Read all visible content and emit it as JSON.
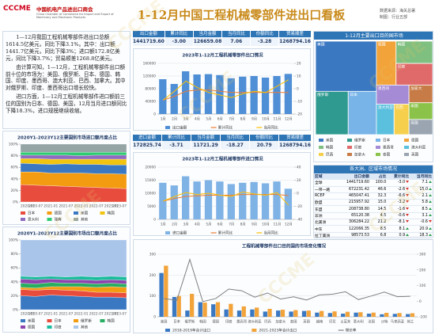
{
  "watermark": "CCCME",
  "header": {
    "logo": "CCCME",
    "org_name": "中国机电产品进出口商会",
    "org_name_en": "China Chamber of Commerce for Import and Export of Machinery and Electronic Products",
    "title": "1-12月中国工程机械零部件进出口看板",
    "source": "数据来源：海关总署",
    "author": "制图：行业五部"
  },
  "summary": {
    "paragraphs": [
      "1—12月我国工程机械零部件进出口总额1614.5亿美元，同比下降3.1%。其中：出口额1441.7亿美元，同比下降3%；进口额172.8亿美元，同比下降3.7%；贸易顺差1268.8亿美元。",
      "由计算可知，1—12月，工程机械零部件出口额前十位的市场为：美国、俄罗斯、日本、德国、韩国、印度、墨西哥、澳大利亚、巴西、加拿大。其中对俄罗斯、印度、墨西哥出口增长较快。",
      "进口方面，1—12月工程机械零部件进口额前三位的国别为日本、德国、美国，12月当月进口额同比下降18.3%，进口规模继续收缩。"
    ]
  },
  "export_kpis": [
    {
      "label": "出口金额",
      "value": "1441719.60"
    },
    {
      "label": "累计同比",
      "value": "-3.00"
    },
    {
      "label": "当月金额",
      "value": "126659.08"
    },
    {
      "label": "当月同比",
      "value": "7.06"
    },
    {
      "label": "份额同比",
      "value": "-3.28"
    },
    {
      "label": "贸易顺差",
      "value": "1268794.16"
    }
  ],
  "import_kpis": [
    {
      "label": "进口金额",
      "value": "172825.74"
    },
    {
      "label": "累计同比",
      "value": "-3.71"
    },
    {
      "label": "当月金额",
      "value": "11721.29"
    },
    {
      "label": "当月同比",
      "value": "-18.27"
    },
    {
      "label": "份额同比",
      "value": "20.79"
    },
    {
      "label": "贸易顺差",
      "value": "1268794.16"
    }
  ],
  "region_table": {
    "title": "各大洲、区域市场情况",
    "columns": [
      "区域",
      "出口金额",
      "占比",
      "累计同比",
      "当月同比"
    ],
    "rows": [
      [
        "全球",
        "1441719.60",
        "100.0",
        "-3.0",
        "7.1"
      ],
      [
        "一带一路",
        "672231.42",
        "46.6",
        "-2.6",
        "15.0"
      ],
      [
        "RCEP",
        "465047.41",
        "32.3",
        "-6.6",
        "2.1"
      ],
      [
        "欧盟",
        "215957.92",
        "15.0",
        "-3.2",
        "5.8"
      ],
      [
        "东盟",
        "208738.80",
        "14.5",
        "-1.6",
        "8.5"
      ],
      [
        "非洲",
        "65120.38",
        "4.5",
        "-0.6",
        "3.1"
      ],
      [
        "北美洲",
        "306284.22",
        "21.2",
        "-8.1",
        "-0.6"
      ],
      [
        "中东",
        "122066.35",
        "8.5",
        "8.1",
        "20.9"
      ],
      [
        "拉丁美洲",
        "98573.53",
        "6.8",
        "0.9",
        "18.3"
      ],
      [
        "大洋洲",
        "76105.01",
        "5.3",
        "0.9",
        "-2.0"
      ]
    ]
  },
  "chart_data": [
    {
      "type": "bar",
      "title": "2023年1-12月工程机械零部件出口情况",
      "categories": [
        "1月",
        "2月",
        "3月",
        "4月",
        "5月",
        "6月",
        "7月",
        "8月",
        "9月",
        "10月",
        "11月",
        "12月"
      ],
      "series": [
        {
          "name": "出口金额",
          "color": "#4f8fd6",
          "values": [
            110000,
            95000,
            135000,
            125000,
            126000,
            123000,
            113000,
            118000,
            120000,
            115000,
            120000,
            126659.08
          ]
        },
        {
          "name": "累计同比",
          "type": "line",
          "axis": "y2",
          "color": "#ed7d31",
          "values": [
            -9,
            -6,
            -2,
            -1,
            -1,
            -2,
            -3,
            -3,
            -3,
            -3,
            -3,
            -3
          ]
        },
        {
          "name": "当月同比",
          "type": "line",
          "axis": "y2",
          "color": "#ffc000",
          "values": [
            -9,
            -2,
            6,
            1,
            -3,
            -5,
            -7,
            -4,
            -2,
            -3,
            2,
            7.06
          ]
        }
      ],
      "ylim": [
        0,
        160000
      ],
      "yticks": [
        0,
        40000,
        80000,
        120000,
        160000
      ],
      "y2lim": [
        -20,
        20
      ],
      "y2ticks": [
        -20,
        -10,
        0,
        10,
        20
      ],
      "grid": true
    },
    {
      "type": "bar",
      "title": "2023年1-12月工程机械零部件进口情况",
      "categories": [
        "1月",
        "2月",
        "3月",
        "4月",
        "5月",
        "6月",
        "7月",
        "8月",
        "9月",
        "10月",
        "11月",
        "12月"
      ],
      "series": [
        {
          "name": "进口金额",
          "color": "#7fb2e5",
          "values": [
            14000,
            13000,
            16500,
            14500,
            15000,
            14500,
            13500,
            14000,
            14300,
            13800,
            14500,
            11721.29
          ]
        },
        {
          "name": "累计同比",
          "type": "line",
          "axis": "y2",
          "color": "#ed7d31",
          "values": [
            -12,
            -8,
            -5,
            -4,
            -3,
            -3,
            -3,
            -2,
            -2,
            -2,
            -2,
            -3.71
          ]
        },
        {
          "name": "当月同比",
          "type": "line",
          "axis": "y2",
          "color": "#ffc000",
          "values": [
            -12,
            -5,
            1,
            -2,
            0,
            -3,
            -5,
            2,
            -1,
            -3,
            1,
            -18.27
          ]
        }
      ],
      "ylim": [
        0,
        20000
      ],
      "yticks": [
        0,
        5000,
        10000,
        15000,
        20000
      ],
      "y2lim": [
        -40,
        40
      ],
      "y2ticks": [
        -40,
        -20,
        0,
        20,
        40
      ],
      "grid": true
    },
    {
      "type": "area",
      "stacked": true,
      "title": "2020Y1-2023Y12主要国别市场进口额月度占比",
      "categories": [
        "2020-01",
        "2020-07",
        "2021-01",
        "2021-07",
        "2022-01",
        "2022-07",
        "2023-01",
        "2023-07"
      ],
      "series": [
        {
          "name": "日本",
          "color": "#e84c3d",
          "values": [
            30,
            29,
            28,
            27,
            26,
            25,
            24,
            23
          ]
        },
        {
          "name": "德国",
          "color": "#f39c12",
          "values": [
            22,
            23,
            22,
            23,
            24,
            24,
            25,
            25
          ]
        },
        {
          "name": "美国",
          "color": "#3a78c2",
          "values": [
            15,
            14,
            15,
            16,
            15,
            16,
            15,
            16
          ]
        },
        {
          "name": "韩国",
          "color": "#f1c40f",
          "values": [
            8,
            9,
            9,
            8,
            9,
            9,
            10,
            10
          ]
        },
        {
          "name": "意大利",
          "color": "#8e6bbf",
          "values": [
            6,
            6,
            7,
            7,
            6,
            7,
            7,
            7
          ]
        },
        {
          "name": "瑞典",
          "color": "#2ecc71",
          "values": [
            5,
            5,
            5,
            5,
            6,
            5,
            5,
            5
          ]
        },
        {
          "name": "其他",
          "color": "#95a5a6",
          "values": [
            14,
            14,
            14,
            14,
            14,
            14,
            14,
            14
          ]
        }
      ],
      "ylim": [
        0,
        100
      ],
      "yticks": [
        {
          "value": 0,
          "label": "0%"
        },
        {
          "value": 20,
          "label": "20%"
        },
        {
          "value": 40,
          "label": "40%"
        },
        {
          "value": 60,
          "label": "60%"
        },
        {
          "value": 80,
          "label": "80%"
        },
        {
          "value": 100,
          "label": "100%"
        }
      ]
    },
    {
      "type": "area",
      "stacked": true,
      "title": "2020Y1-2023Y12主要国别市场出口额月度占比",
      "categories": [
        "2020-01",
        "2020-07",
        "2021-01",
        "2021-07",
        "2022-01",
        "2022-07",
        "2023-01",
        "2023-07"
      ],
      "series": [
        {
          "name": "美国",
          "color": "#3a78c2",
          "values": [
            20,
            19,
            21,
            20,
            19,
            18,
            18,
            17
          ]
        },
        {
          "name": "日本",
          "color": "#e84c3d",
          "values": [
            9,
            9,
            8,
            8,
            8,
            7,
            7,
            7
          ]
        },
        {
          "name": "俄罗斯",
          "color": "#f39c12",
          "values": [
            3,
            3,
            4,
            5,
            6,
            7,
            8,
            8
          ]
        },
        {
          "name": "韩国",
          "color": "#27ae60",
          "values": [
            6,
            6,
            6,
            5,
            5,
            5,
            5,
            5
          ]
        },
        {
          "name": "德国",
          "color": "#8e44ad",
          "values": [
            6,
            6,
            5,
            5,
            5,
            5,
            5,
            5
          ]
        },
        {
          "name": "印度",
          "color": "#1abc9c",
          "values": [
            4,
            4,
            4,
            4,
            5,
            5,
            5,
            5
          ]
        },
        {
          "name": "其他",
          "color": "#a9c6ea",
          "values": [
            52,
            53,
            52,
            53,
            52,
            53,
            52,
            53
          ]
        }
      ],
      "ylim": [
        0,
        100
      ],
      "yticks": [
        {
          "value": 0,
          "label": "0%"
        },
        {
          "value": 20,
          "label": "20%"
        },
        {
          "value": 40,
          "label": "40%"
        },
        {
          "value": 60,
          "label": "60%"
        },
        {
          "value": 80,
          "label": "80%"
        },
        {
          "value": 100,
          "label": "100%"
        }
      ]
    },
    {
      "type": "treemap",
      "title": "1-12月主要出口目的国市场",
      "categories": [
        "美国",
        "俄罗斯",
        "日本",
        "德国",
        "韩国",
        "印度",
        "墨西哥",
        "澳大利亚",
        "巴西",
        "加拿大",
        "泰国",
        "英国"
      ],
      "values": [
        255000,
        118000,
        102000,
        72000,
        68000,
        66000,
        52000,
        45000,
        38000,
        35000,
        33000,
        30000
      ],
      "colors": [
        "#3a78c2",
        "#2f9a8f",
        "#79b4e8",
        "#f2a33a",
        "#7fbf7f",
        "#e06a6a",
        "#a58ad6",
        "#5bc0de",
        "#f6d04d",
        "#c77c48",
        "#8bc34a",
        "#9aa5b1"
      ]
    },
    {
      "type": "bar",
      "title": "工程机械零部件出口目的国的市场变化情况",
      "categories": [
        "美国",
        "日本",
        "俄罗斯",
        "韩国",
        "德国",
        "印度",
        "墨西哥",
        "澳大利亚",
        "巴西",
        "加拿大",
        "泰国",
        "英国",
        "越南",
        "印尼",
        "土耳其",
        "意大利",
        "法国",
        "沙特",
        "马来西亚",
        "荷兰"
      ],
      "series": [
        {
          "name": "2018-2019年合计出口",
          "color": "#3a78c2",
          "values": [
            210,
            95,
            30,
            70,
            60,
            35,
            30,
            35,
            25,
            30,
            25,
            28,
            20,
            18,
            15,
            20,
            15,
            12,
            14,
            13
          ]
        },
        {
          "name": "2021-2023年合计出口",
          "color": "#f2a33a",
          "values": [
            245,
            100,
            110,
            68,
            70,
            62,
            50,
            44,
            38,
            34,
            32,
            30,
            28,
            26,
            24,
            22,
            20,
            19,
            18,
            17
          ]
        },
        {
          "name": "增长率",
          "type": "line",
          "axis": "y2",
          "color": "#7f7f7f",
          "values": [
            16.7,
            5.3,
            266.7,
            -2.9,
            16.7,
            77.1,
            66.7,
            25.7,
            52,
            13.3,
            28,
            7.1,
            40,
            44.4,
            60,
            10,
            33.3,
            58.3,
            28.6,
            30.8
          ]
        }
      ],
      "ylim": [
        0,
        300
      ],
      "yticks": [
        0,
        100,
        200,
        300
      ],
      "y2lim": [
        -100,
        300
      ],
      "y2ticks": [
        -100,
        0,
        100,
        200,
        300
      ],
      "grid": true
    }
  ]
}
